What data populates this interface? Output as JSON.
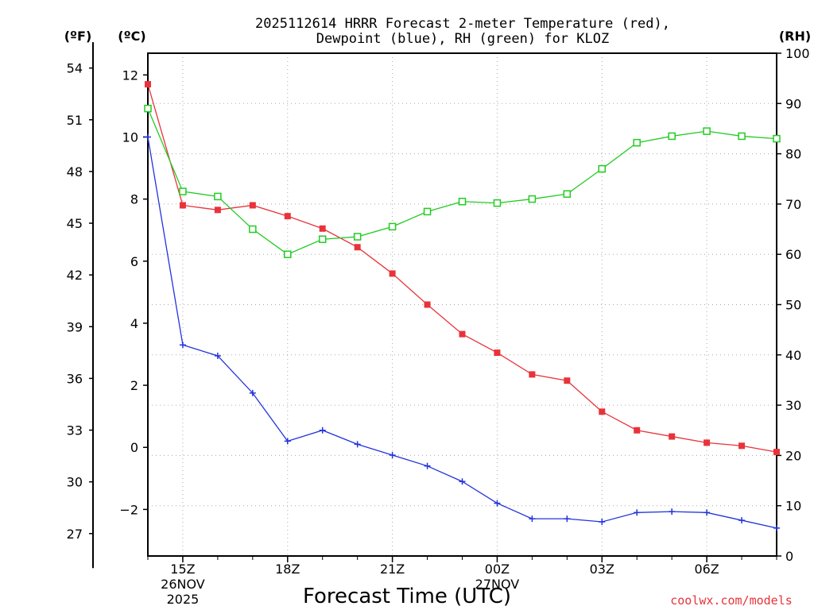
{
  "title_line1": "2025112614 HRRR Forecast 2-meter Temperature (red),",
  "title_line2": "Dewpoint (blue), RH (green) for KLOZ",
  "credit": "coolwx.com/models",
  "colors": {
    "temperature": "#e8333a",
    "dewpoint": "#2233dd",
    "rh": "#22cc22"
  },
  "chart_data": {
    "type": "line",
    "title": "2025112614 HRRR Forecast 2-meter Temperature (red), Dewpoint (blue), RH (green) for KLOZ",
    "xlabel": "Forecast Time (UTC)",
    "ylabel_left_f": "(ºF)",
    "ylabel_left_c": "(ºC)",
    "ylabel_right": "(RH)",
    "x_hours": [
      14,
      15,
      16,
      17,
      18,
      19,
      20,
      21,
      22,
      23,
      24,
      25,
      26,
      27,
      28,
      29,
      30,
      31,
      32
    ],
    "x_ticks": [
      {
        "hour": 15,
        "label": "15Z",
        "sub1": "26NOV",
        "sub2": "2025"
      },
      {
        "hour": 18,
        "label": "18Z",
        "sub1": "",
        "sub2": ""
      },
      {
        "hour": 21,
        "label": "21Z",
        "sub1": "",
        "sub2": ""
      },
      {
        "hour": 24,
        "label": "00Z",
        "sub1": "27NOV",
        "sub2": ""
      },
      {
        "hour": 27,
        "label": "03Z",
        "sub1": "",
        "sub2": ""
      },
      {
        "hour": 30,
        "label": "06Z",
        "sub1": "",
        "sub2": ""
      }
    ],
    "xlim": [
      14,
      32
    ],
    "ylim_c": [
      -3.5,
      12.7
    ],
    "y_ticks_c": [
      -2,
      0,
      2,
      4,
      6,
      8,
      10,
      12
    ],
    "y_tick_labels_c": [
      "−2",
      "0",
      "2",
      "4",
      "6",
      "8",
      "10",
      "12"
    ],
    "y_ticks_f": [
      27,
      30,
      33,
      36,
      39,
      42,
      45,
      48,
      51,
      54
    ],
    "ylim_rh": [
      0,
      100
    ],
    "y_ticks_rh": [
      0,
      10,
      20,
      30,
      40,
      50,
      60,
      70,
      80,
      90,
      100
    ],
    "series": [
      {
        "name": "Temperature",
        "unit": "C",
        "color": "#e8333a",
        "marker": "filled-square",
        "values": [
          11.7,
          7.8,
          7.65,
          7.8,
          7.45,
          7.05,
          6.45,
          5.6,
          4.6,
          3.65,
          3.05,
          2.35,
          2.15,
          1.15,
          0.55,
          0.35,
          0.15,
          0.05,
          -0.15
        ]
      },
      {
        "name": "Dewpoint",
        "unit": "C",
        "color": "#2233dd",
        "marker": "plus",
        "values": [
          10.0,
          3.3,
          2.95,
          1.75,
          0.2,
          0.55,
          0.1,
          -0.25,
          -0.6,
          -1.1,
          -1.8,
          -2.3,
          -2.3,
          -2.4,
          -2.1,
          -2.07,
          -2.1,
          -2.35,
          -2.6
        ]
      },
      {
        "name": "RH",
        "unit": "%",
        "color": "#22cc22",
        "marker": "open-square",
        "values": [
          89,
          72.5,
          71.5,
          65,
          60,
          63,
          63.5,
          65.5,
          68.5,
          70.5,
          70.2,
          71,
          72,
          77,
          82.2,
          83.5,
          84.5,
          83.5,
          83
        ]
      }
    ]
  }
}
